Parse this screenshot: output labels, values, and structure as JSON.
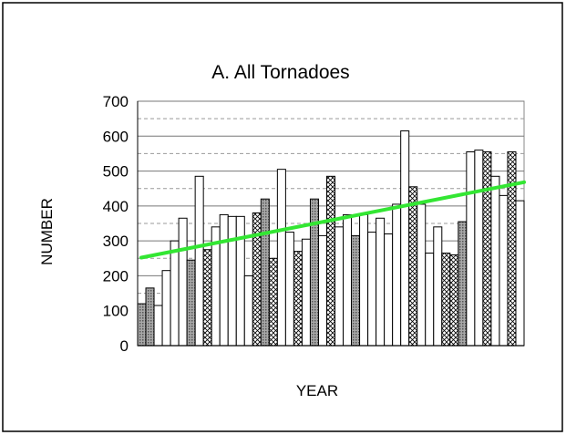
{
  "chart_data": {
    "type": "bar",
    "title": "A. All Tornadoes",
    "xlabel": "YEAR",
    "ylabel": "NUMBER",
    "ylim": [
      0,
      700
    ],
    "yticks": [
      0,
      100,
      200,
      300,
      400,
      500,
      600,
      700
    ],
    "grid": "horizontal, solid at each 100 and dashed at each intermediate 50",
    "legend": "none",
    "colors": {
      "plain": "#ffffff",
      "gray": "#9a9a9a",
      "hatched": "crosshatch",
      "trend": "#33e633"
    },
    "values": [
      120,
      165,
      115,
      215,
      300,
      365,
      245,
      485,
      275,
      340,
      375,
      370,
      370,
      200,
      380,
      420,
      250,
      505,
      325,
      270,
      305,
      420,
      315,
      485,
      340,
      375,
      315,
      375,
      325,
      365,
      320,
      405,
      615,
      455,
      405,
      265,
      340,
      265,
      260,
      355,
      555,
      560,
      555,
      485,
      430,
      555,
      415
    ],
    "styles": [
      "gray",
      "gray",
      "plain",
      "plain",
      "plain",
      "plain",
      "gray",
      "plain",
      "hatched",
      "plain",
      "plain",
      "plain",
      "plain",
      "plain",
      "hatched",
      "gray",
      "hatched",
      "plain",
      "plain",
      "hatched",
      "plain",
      "gray",
      "plain",
      "hatched",
      "plain",
      "plain",
      "gray",
      "plain",
      "plain",
      "plain",
      "plain",
      "plain",
      "plain",
      "hatched",
      "plain",
      "plain",
      "plain",
      "hatched",
      "hatched",
      "gray",
      "plain",
      "plain",
      "hatched",
      "plain",
      "plain",
      "hatched",
      "plain"
    ],
    "trendline": {
      "start": 252,
      "end": 468
    }
  }
}
